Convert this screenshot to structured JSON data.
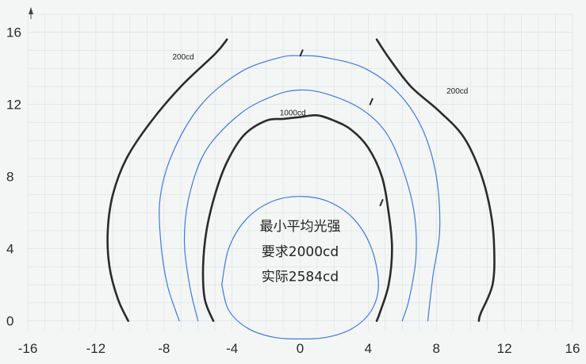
{
  "chart_data": {
    "type": "line",
    "title": "",
    "xlabel": "",
    "ylabel": "",
    "xlim": [
      -16,
      16
    ],
    "ylim": [
      -0.5,
      17
    ],
    "x_ticks": [
      -16,
      -12,
      -8,
      -4,
      0,
      4,
      8,
      12,
      16
    ],
    "y_ticks": [
      0,
      4,
      8,
      12,
      16
    ],
    "grid": true,
    "colors": {
      "thick_contour": "#2b2b2b",
      "thin_contour": "#3f78e0",
      "grid": "#dde3e8",
      "axis": "#444444"
    },
    "series": [
      {
        "name": "200cd",
        "style": "thick",
        "branches": [
          [
            [
              -10.1,
              0
            ],
            [
              -10.7,
              1.2
            ],
            [
              -11.2,
              3
            ],
            [
              -11.3,
              5
            ],
            [
              -11.0,
              7
            ],
            [
              -10.2,
              9
            ],
            [
              -8.8,
              11
            ],
            [
              -7.0,
              13
            ],
            [
              -5.0,
              14.8
            ],
            [
              -4.3,
              15.6
            ]
          ],
          [
            [
              4.5,
              15.6
            ],
            [
              5.2,
              14.6
            ],
            [
              6.5,
              13.0
            ],
            [
              8.2,
              11.6
            ],
            [
              9.6,
              10.2
            ],
            [
              10.6,
              8.2
            ],
            [
              11.2,
              6.0
            ],
            [
              11.4,
              4.0
            ],
            [
              11.3,
              2.0
            ],
            [
              10.6,
              0.4
            ],
            [
              10.5,
              0
            ]
          ]
        ]
      },
      {
        "name": "1000cd",
        "style": "thick",
        "branches": [
          [
            [
              -5.1,
              0
            ],
            [
              -5.6,
              1.2
            ],
            [
              -5.7,
              3
            ],
            [
              -5.5,
              5
            ],
            [
              -5.0,
              7
            ],
            [
              -4.3,
              8.8
            ],
            [
              -3.3,
              10.3
            ],
            [
              -2.0,
              11.1
            ],
            [
              -1.0,
              11.2
            ],
            [
              0,
              11.3
            ],
            [
              1.0,
              11.4
            ],
            [
              2.0,
              11.1
            ],
            [
              3.0,
              10.6
            ],
            [
              4.0,
              9.6
            ],
            [
              4.8,
              8.0
            ],
            [
              5.2,
              6.0
            ],
            [
              5.4,
              4.0
            ],
            [
              5.2,
              2.0
            ],
            [
              4.7,
              0.5
            ],
            [
              4.5,
              0
            ]
          ]
        ]
      },
      {
        "name": "",
        "style": "thin",
        "branches": [
          [
            [
              -4.6,
              2.0
            ],
            [
              -4.2,
              4.0
            ],
            [
              -3.2,
              5.6
            ],
            [
              -1.7,
              6.6
            ],
            [
              0,
              6.9
            ],
            [
              1.7,
              6.6
            ],
            [
              3.2,
              5.6
            ],
            [
              4.2,
              4.0
            ],
            [
              4.6,
              2.0
            ],
            [
              4.2,
              0.6
            ],
            [
              3.1,
              -0.4
            ],
            [
              1.6,
              -0.9
            ],
            [
              0,
              -1.0
            ],
            [
              -1.6,
              -0.9
            ],
            [
              -3.1,
              -0.4
            ],
            [
              -4.2,
              0.6
            ],
            [
              -4.6,
              2.0
            ]
          ]
        ]
      },
      {
        "name": "",
        "style": "thin",
        "branches": [
          [
            [
              -6.0,
              0
            ],
            [
              -6.5,
              2
            ],
            [
              -6.8,
              4.5
            ],
            [
              -6.5,
              7
            ],
            [
              -5.5,
              9.5
            ],
            [
              -3.5,
              11.5
            ],
            [
              -1.5,
              12.5
            ],
            [
              0,
              12.8
            ],
            [
              1.5,
              12.6
            ],
            [
              3.5,
              11.8
            ],
            [
              5.0,
              10.5
            ],
            [
              6.0,
              8.5
            ],
            [
              6.7,
              6.0
            ],
            [
              6.8,
              3.5
            ],
            [
              6.4,
              1.2
            ],
            [
              6.0,
              0
            ]
          ]
        ]
      },
      {
        "name": "",
        "style": "thin",
        "branches": [
          [
            [
              -7.1,
              0
            ],
            [
              -7.8,
              2
            ],
            [
              -8.2,
              4.5
            ],
            [
              -8.2,
              7
            ],
            [
              -7.4,
              9.5
            ],
            [
              -5.8,
              12
            ],
            [
              -3.5,
              13.8
            ],
            [
              -1.2,
              14.6
            ],
            [
              0,
              14.7
            ],
            [
              1.5,
              14.6
            ],
            [
              3.8,
              14.0
            ],
            [
              5.8,
              12.6
            ],
            [
              7.2,
              10.6
            ],
            [
              8.0,
              8.0
            ],
            [
              8.2,
              5.0
            ],
            [
              7.8,
              2.5
            ],
            [
              7.5,
              0
            ]
          ]
        ]
      }
    ],
    "annotations": [
      {
        "text": "200cd",
        "x": -7.5,
        "y": 14.5
      },
      {
        "text": "200cd",
        "x": 8.6,
        "y": 12.6
      },
      {
        "text": "1000cd",
        "x": -1.2,
        "y": 11.4
      },
      {
        "text": "最小平均光强",
        "x": 0,
        "y": 5.0
      },
      {
        "text": "要求2000cd",
        "x": 0,
        "y": 3.6
      },
      {
        "text": "实际2584cd",
        "x": 0,
        "y": 2.2
      }
    ],
    "tick_marks": [
      {
        "x": 0.1,
        "y": 14.7
      },
      {
        "x": 4.2,
        "y": 12.0
      },
      {
        "x": 4.8,
        "y": 6.4
      }
    ]
  }
}
